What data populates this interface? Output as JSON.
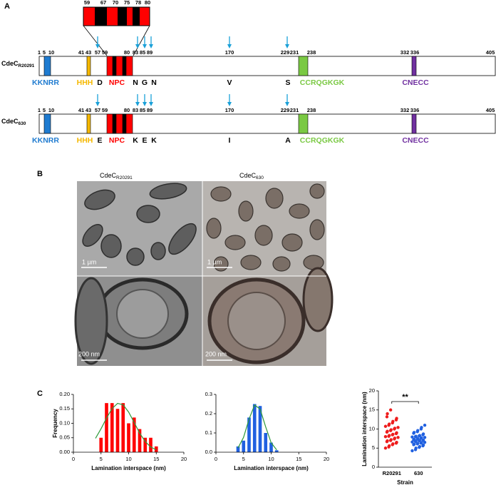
{
  "figure": {
    "panel_labels": [
      "A",
      "B",
      "C"
    ],
    "panel_a": {
      "inset": {
        "positions": [
          59,
          67,
          70,
          75,
          78,
          80
        ]
      },
      "tracks": [
        {
          "protein": "CdeC",
          "strain": "R20291",
          "positions": [
            1,
            5,
            10,
            41,
            43,
            57,
            59,
            80,
            83,
            85,
            89,
            170,
            229,
            231,
            238,
            332,
            336,
            405
          ],
          "motifs": [
            "KKNRR",
            "HHH",
            "NPC",
            "CCRQGKGK",
            "CNECC"
          ],
          "residues": [
            "D",
            "N",
            "G",
            "N",
            "V",
            "S"
          ]
        },
        {
          "protein": "CdeC",
          "strain": "630",
          "positions": [
            1,
            5,
            10,
            41,
            43,
            57,
            59,
            80,
            83,
            85,
            89,
            170,
            229,
            231,
            238,
            332,
            336,
            405
          ],
          "motifs": [
            "KKNRR",
            "HHH",
            "NPC",
            "CCRQGKGK",
            "CNECC"
          ],
          "residues": [
            "E",
            "K",
            "E",
            "K",
            "I",
            "A"
          ]
        }
      ]
    },
    "panel_b": {
      "columns": [
        {
          "protein": "CdeC",
          "strain": "R20291"
        },
        {
          "protein": "CdeC",
          "strain": "630"
        }
      ],
      "scale_bars": [
        "1 µm",
        "1 µm",
        "200 nm",
        "200 nm"
      ]
    }
  },
  "chart_data": [
    {
      "type": "histogram",
      "color": "#ff0000",
      "bins": [
        4.5,
        5.5,
        6.5,
        7.5,
        8.5,
        9.5,
        10.5,
        11.5,
        12.5,
        13.5,
        14.5,
        15.5
      ],
      "values": [
        0.05,
        0.17,
        0.17,
        0.15,
        0.17,
        0.1,
        0.12,
        0.08,
        0.05,
        0.05,
        0.02
      ],
      "fit": {
        "color": "#2e9a3a",
        "x": [
          4,
          5,
          6,
          7,
          8,
          9,
          10,
          11,
          12,
          13,
          14,
          15
        ],
        "y": [
          0.048,
          0.081,
          0.118,
          0.151,
          0.169,
          0.164,
          0.139,
          0.103,
          0.066,
          0.037,
          0.018,
          0.008
        ]
      },
      "xlim": [
        0,
        20
      ],
      "xticks": [
        0,
        5,
        10,
        15,
        20
      ],
      "ylim": [
        0,
        0.2
      ],
      "yticks": [
        {
          "value": 0,
          "label": "0.00"
        },
        0.05,
        {
          "value": 0.1,
          "label": "0.10"
        },
        0.15,
        {
          "value": 0.2,
          "label": "0.20"
        }
      ],
      "x_label": "Lamination interspace (nm)",
      "y_label": "Frequency"
    },
    {
      "type": "histogram",
      "color": "#2060e0",
      "bins": [
        3.5,
        4.5,
        5.5,
        6.5,
        7.5,
        8.5,
        9.5,
        10.5,
        11.5
      ],
      "values": [
        0.03,
        0.06,
        0.18,
        0.25,
        0.24,
        0.1,
        0.05,
        0.01
      ],
      "fit": {
        "color": "#2e9a3a",
        "x": [
          4,
          5,
          6,
          7,
          8,
          9,
          10,
          11
        ],
        "y": [
          0.022,
          0.077,
          0.172,
          0.245,
          0.224,
          0.132,
          0.049,
          0.012
        ]
      },
      "xlim": [
        0,
        20
      ],
      "xticks": [
        0,
        5,
        10,
        15,
        20
      ],
      "ylim": [
        0,
        0.3
      ],
      "yticks": [
        {
          "value": 0,
          "label": "0.0"
        },
        0.1,
        0.2,
        0.3
      ],
      "x_label": "Lamination interspace (nm)"
    },
    {
      "type": "dot",
      "categories": [
        "R20291",
        "630"
      ],
      "colors": [
        "#ee1c1c",
        "#2060e0"
      ],
      "values": [
        [
          5.0,
          5.3,
          5.6,
          5.9,
          6.1,
          6.3,
          6.5,
          6.7,
          6.9,
          7.0,
          7.2,
          7.4,
          7.6,
          7.8,
          8.0,
          8.1,
          8.3,
          8.5,
          8.6,
          8.8,
          9.0,
          9.2,
          9.4,
          9.6,
          9.8,
          10.0,
          10.2,
          10.4,
          10.7,
          11.0,
          11.3,
          11.6,
          12.0,
          12.4,
          12.8,
          13.2,
          14.0,
          15.0
        ],
        [
          4.3,
          4.6,
          5.0,
          5.2,
          5.4,
          5.6,
          5.8,
          5.9,
          6.0,
          6.1,
          6.2,
          6.3,
          6.4,
          6.5,
          6.6,
          6.7,
          6.8,
          6.9,
          7.0,
          7.0,
          7.1,
          7.2,
          7.3,
          7.4,
          7.5,
          7.6,
          7.7,
          7.8,
          7.9,
          8.0,
          8.1,
          8.2,
          8.3,
          8.5,
          8.7,
          8.9,
          9.1,
          9.3,
          9.6,
          10.0,
          10.4,
          11.0
        ]
      ],
      "ylim": [
        0,
        20
      ],
      "yticks": [
        0,
        5,
        10,
        15,
        20
      ],
      "x_label": "Strain",
      "y_label": "Lamination interspace (nm)",
      "annotation": "**"
    }
  ]
}
